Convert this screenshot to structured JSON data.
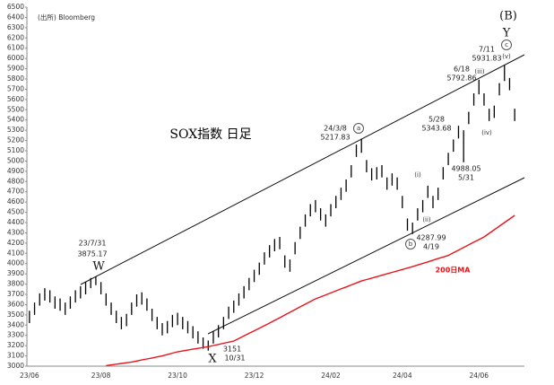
{
  "chart_data": {
    "type": "candlestick",
    "title": "SOX指数 日足",
    "source": "(出所)  Bloomberg",
    "categories": [
      "23/06",
      null,
      null,
      null,
      null,
      null,
      null,
      null,
      null,
      null,
      null,
      null,
      null,
      null,
      "23/08",
      null,
      null,
      null,
      null,
      null,
      null,
      null,
      null,
      null,
      null,
      null,
      null,
      null,
      null,
      "23/10",
      null,
      null,
      null,
      null,
      null,
      null,
      null,
      null,
      null,
      null,
      null,
      null,
      null,
      null,
      "23/12",
      null,
      null,
      null,
      null,
      null,
      null,
      null,
      null,
      null,
      null,
      null,
      null,
      null,
      null,
      "24/02",
      null,
      null,
      null,
      null,
      null,
      null,
      null,
      null,
      null,
      null,
      null,
      null,
      null,
      "24/04",
      null,
      null,
      null,
      null,
      null,
      null,
      null,
      null,
      null,
      null,
      null,
      null,
      null,
      null,
      "24/06",
      null,
      null,
      null,
      null,
      null,
      null,
      null
    ],
    "high": [
      3540,
      3620,
      3710,
      3760,
      3740,
      3680,
      3660,
      3620,
      3680,
      3740,
      3780,
      3820,
      3860,
      3875.17,
      3820,
      3710,
      3620,
      3540,
      3480,
      3510,
      3620,
      3700,
      3720,
      3660,
      3560,
      3480,
      3420,
      3440,
      3500,
      3520,
      3480,
      3440,
      3390,
      3340,
      3280,
      3250,
      3340,
      3400,
      3480,
      3580,
      3640,
      3710,
      3780,
      3860,
      3940,
      4010,
      4110,
      4180,
      4240,
      4260,
      4080,
      4040,
      4210,
      4360,
      4480,
      4580,
      4620,
      4540,
      4480,
      4580,
      4660,
      4740,
      4820,
      4960,
      5160,
      5217.83,
      5010,
      4930,
      4940,
      4960,
      4840,
      4880,
      4840,
      4660,
      4440,
      4400,
      4540,
      4620,
      4760,
      4660,
      4740,
      4940,
      5080,
      5210,
      5343.68,
      5300,
      5480,
      5660,
      5792.86,
      5660,
      5510,
      5540,
      5760,
      5931.83,
      5810,
      5510
    ],
    "low": [
      3420,
      3500,
      3590,
      3640,
      3620,
      3560,
      3540,
      3500,
      3560,
      3620,
      3660,
      3700,
      3760,
      3790,
      3700,
      3590,
      3500,
      3420,
      3360,
      3390,
      3500,
      3580,
      3600,
      3540,
      3440,
      3360,
      3300,
      3320,
      3380,
      3400,
      3360,
      3320,
      3270,
      3220,
      3170,
      3151,
      3220,
      3280,
      3360,
      3460,
      3520,
      3590,
      3660,
      3740,
      3820,
      3890,
      3990,
      4060,
      4120,
      4140,
      3960,
      3920,
      4090,
      4240,
      4360,
      4460,
      4500,
      4420,
      4360,
      4460,
      4540,
      4620,
      4700,
      4840,
      5040,
      5080,
      4890,
      4810,
      4820,
      4840,
      4720,
      4760,
      4720,
      4540,
      4320,
      4287.99,
      4420,
      4500,
      4640,
      4540,
      4620,
      4820,
      4960,
      5090,
      5220,
      4988.05,
      5360,
      5540,
      5650,
      5540,
      5390,
      5420,
      5640,
      5780,
      5690,
      5390
    ],
    "color": "#000000",
    "series": [
      {
        "name": "200日MA",
        "color": "#e8141b",
        "values": [
          null,
          null,
          null,
          null,
          null,
          null,
          null,
          null,
          null,
          null,
          null,
          null,
          null,
          null,
          null,
          3005,
          3012,
          3019,
          3026,
          3033,
          3040,
          3050,
          3060,
          3070,
          3080,
          3090,
          3100,
          3113,
          3127,
          3140,
          3148,
          3157,
          3165,
          3173,
          3182,
          3190,
          3201,
          3212,
          3223,
          3234,
          3245,
          3270,
          3295,
          3320,
          3345,
          3370,
          3395,
          3420,
          3446,
          3472,
          3499,
          3525,
          3551,
          3578,
          3604,
          3630,
          3656,
          3675,
          3695,
          3714,
          3734,
          3753,
          3772,
          3792,
          3811,
          3830,
          3844,
          3858,
          3872,
          3886,
          3900,
          3914,
          3928,
          3942,
          3956,
          3970,
          3986,
          4001,
          4017,
          4033,
          4049,
          4064,
          4080,
          4106,
          4131,
          4157,
          4183,
          4209,
          4234,
          4260,
          4295,
          4330,
          4365,
          4400,
          4435,
          4470
        ]
      }
    ],
    "ylim": [
      3000,
      6500
    ],
    "yticks": [
      3000,
      3100,
      3200,
      3300,
      3400,
      3500,
      3600,
      3700,
      3800,
      3900,
      4000,
      4100,
      4200,
      4300,
      4400,
      4500,
      4600,
      4700,
      4800,
      4900,
      5000,
      5100,
      5200,
      5300,
      5400,
      5500,
      5600,
      5700,
      5800,
      5900,
      6000,
      6100,
      6200,
      6300,
      6400,
      6500
    ],
    "wave_labels": [
      "(B)",
      "Y",
      "W",
      "X",
      "a",
      "b",
      "c",
      "(i)",
      "(ii)",
      "(iii)",
      "(iv)",
      "(v)"
    ],
    "points": [
      {
        "date": "23/7/31",
        "value": 3875.17
      },
      {
        "date": "10/31",
        "value": 3151
      },
      {
        "date": "24/3/8",
        "value": 5217.83
      },
      {
        "date": "4/19",
        "value": 4287.99
      },
      {
        "date": "5/28",
        "value": 5343.68
      },
      {
        "date": "5/31",
        "value": 4988.05
      },
      {
        "date": "6/18",
        "value": 5792.86
      },
      {
        "date": "7/11",
        "value": 5931.83
      }
    ]
  }
}
